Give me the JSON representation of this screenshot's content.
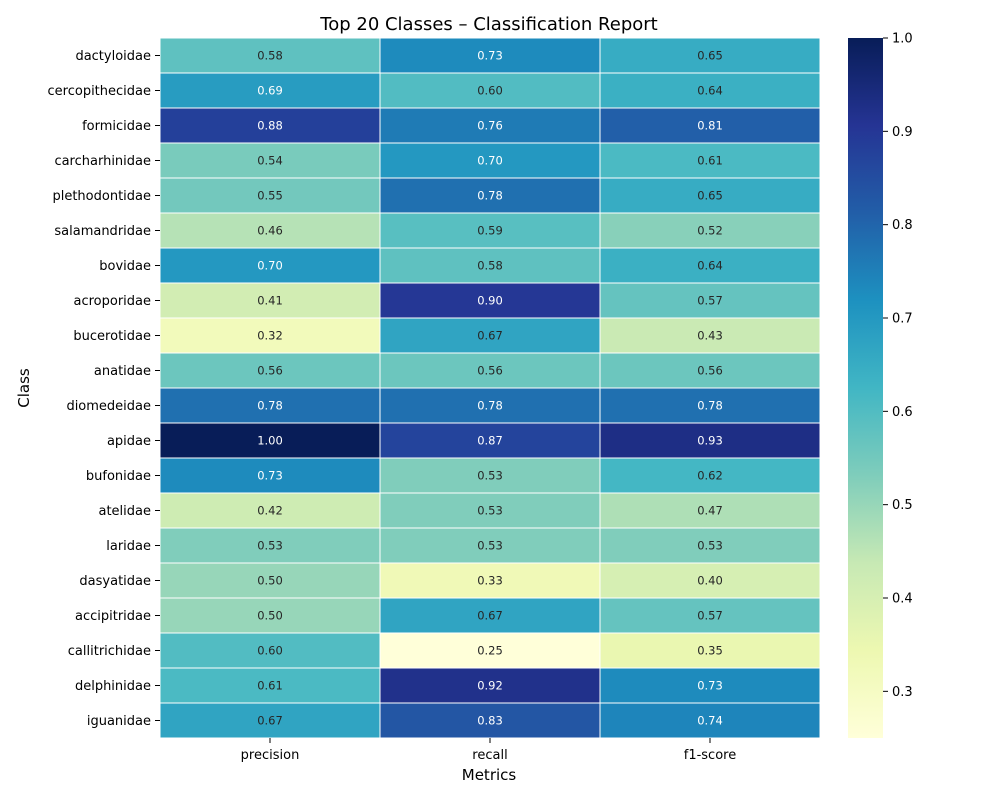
{
  "chart_data": {
    "type": "heatmap",
    "title": "Top 20 Classes – Classification Report",
    "xlabel": "Metrics",
    "ylabel": "Class",
    "columns": [
      "precision",
      "recall",
      "f1-score"
    ],
    "rows": [
      "dactyloidae",
      "cercopithecidae",
      "formicidae",
      "carcharhinidae",
      "plethodontidae",
      "salamandridae",
      "bovidae",
      "acroporidae",
      "bucerotidae",
      "anatidae",
      "diomedeidae",
      "apidae",
      "bufonidae",
      "atelidae",
      "laridae",
      "dasyatidae",
      "accipitridae",
      "callitrichidae",
      "delphinidae",
      "iguanidae"
    ],
    "values": [
      [
        0.58,
        0.73,
        0.65
      ],
      [
        0.69,
        0.6,
        0.64
      ],
      [
        0.88,
        0.76,
        0.81
      ],
      [
        0.54,
        0.7,
        0.61
      ],
      [
        0.55,
        0.78,
        0.65
      ],
      [
        0.46,
        0.59,
        0.52
      ],
      [
        0.7,
        0.58,
        0.64
      ],
      [
        0.41,
        0.9,
        0.57
      ],
      [
        0.32,
        0.67,
        0.43
      ],
      [
        0.56,
        0.56,
        0.56
      ],
      [
        0.78,
        0.78,
        0.78
      ],
      [
        1.0,
        0.87,
        0.93
      ],
      [
        0.73,
        0.53,
        0.62
      ],
      [
        0.42,
        0.53,
        0.47
      ],
      [
        0.53,
        0.53,
        0.53
      ],
      [
        0.5,
        0.33,
        0.4
      ],
      [
        0.5,
        0.67,
        0.57
      ],
      [
        0.6,
        0.25,
        0.35
      ],
      [
        0.61,
        0.92,
        0.73
      ],
      [
        0.67,
        0.83,
        0.74
      ]
    ],
    "colorbar": {
      "colormap": "YlGnBu",
      "vmin": 0.25,
      "vmax": 1.0,
      "ticks": [
        "0.3",
        "0.4",
        "0.5",
        "0.6",
        "0.7",
        "0.8",
        "0.9",
        "1.0"
      ]
    },
    "annotation_format": "2 decimals"
  }
}
